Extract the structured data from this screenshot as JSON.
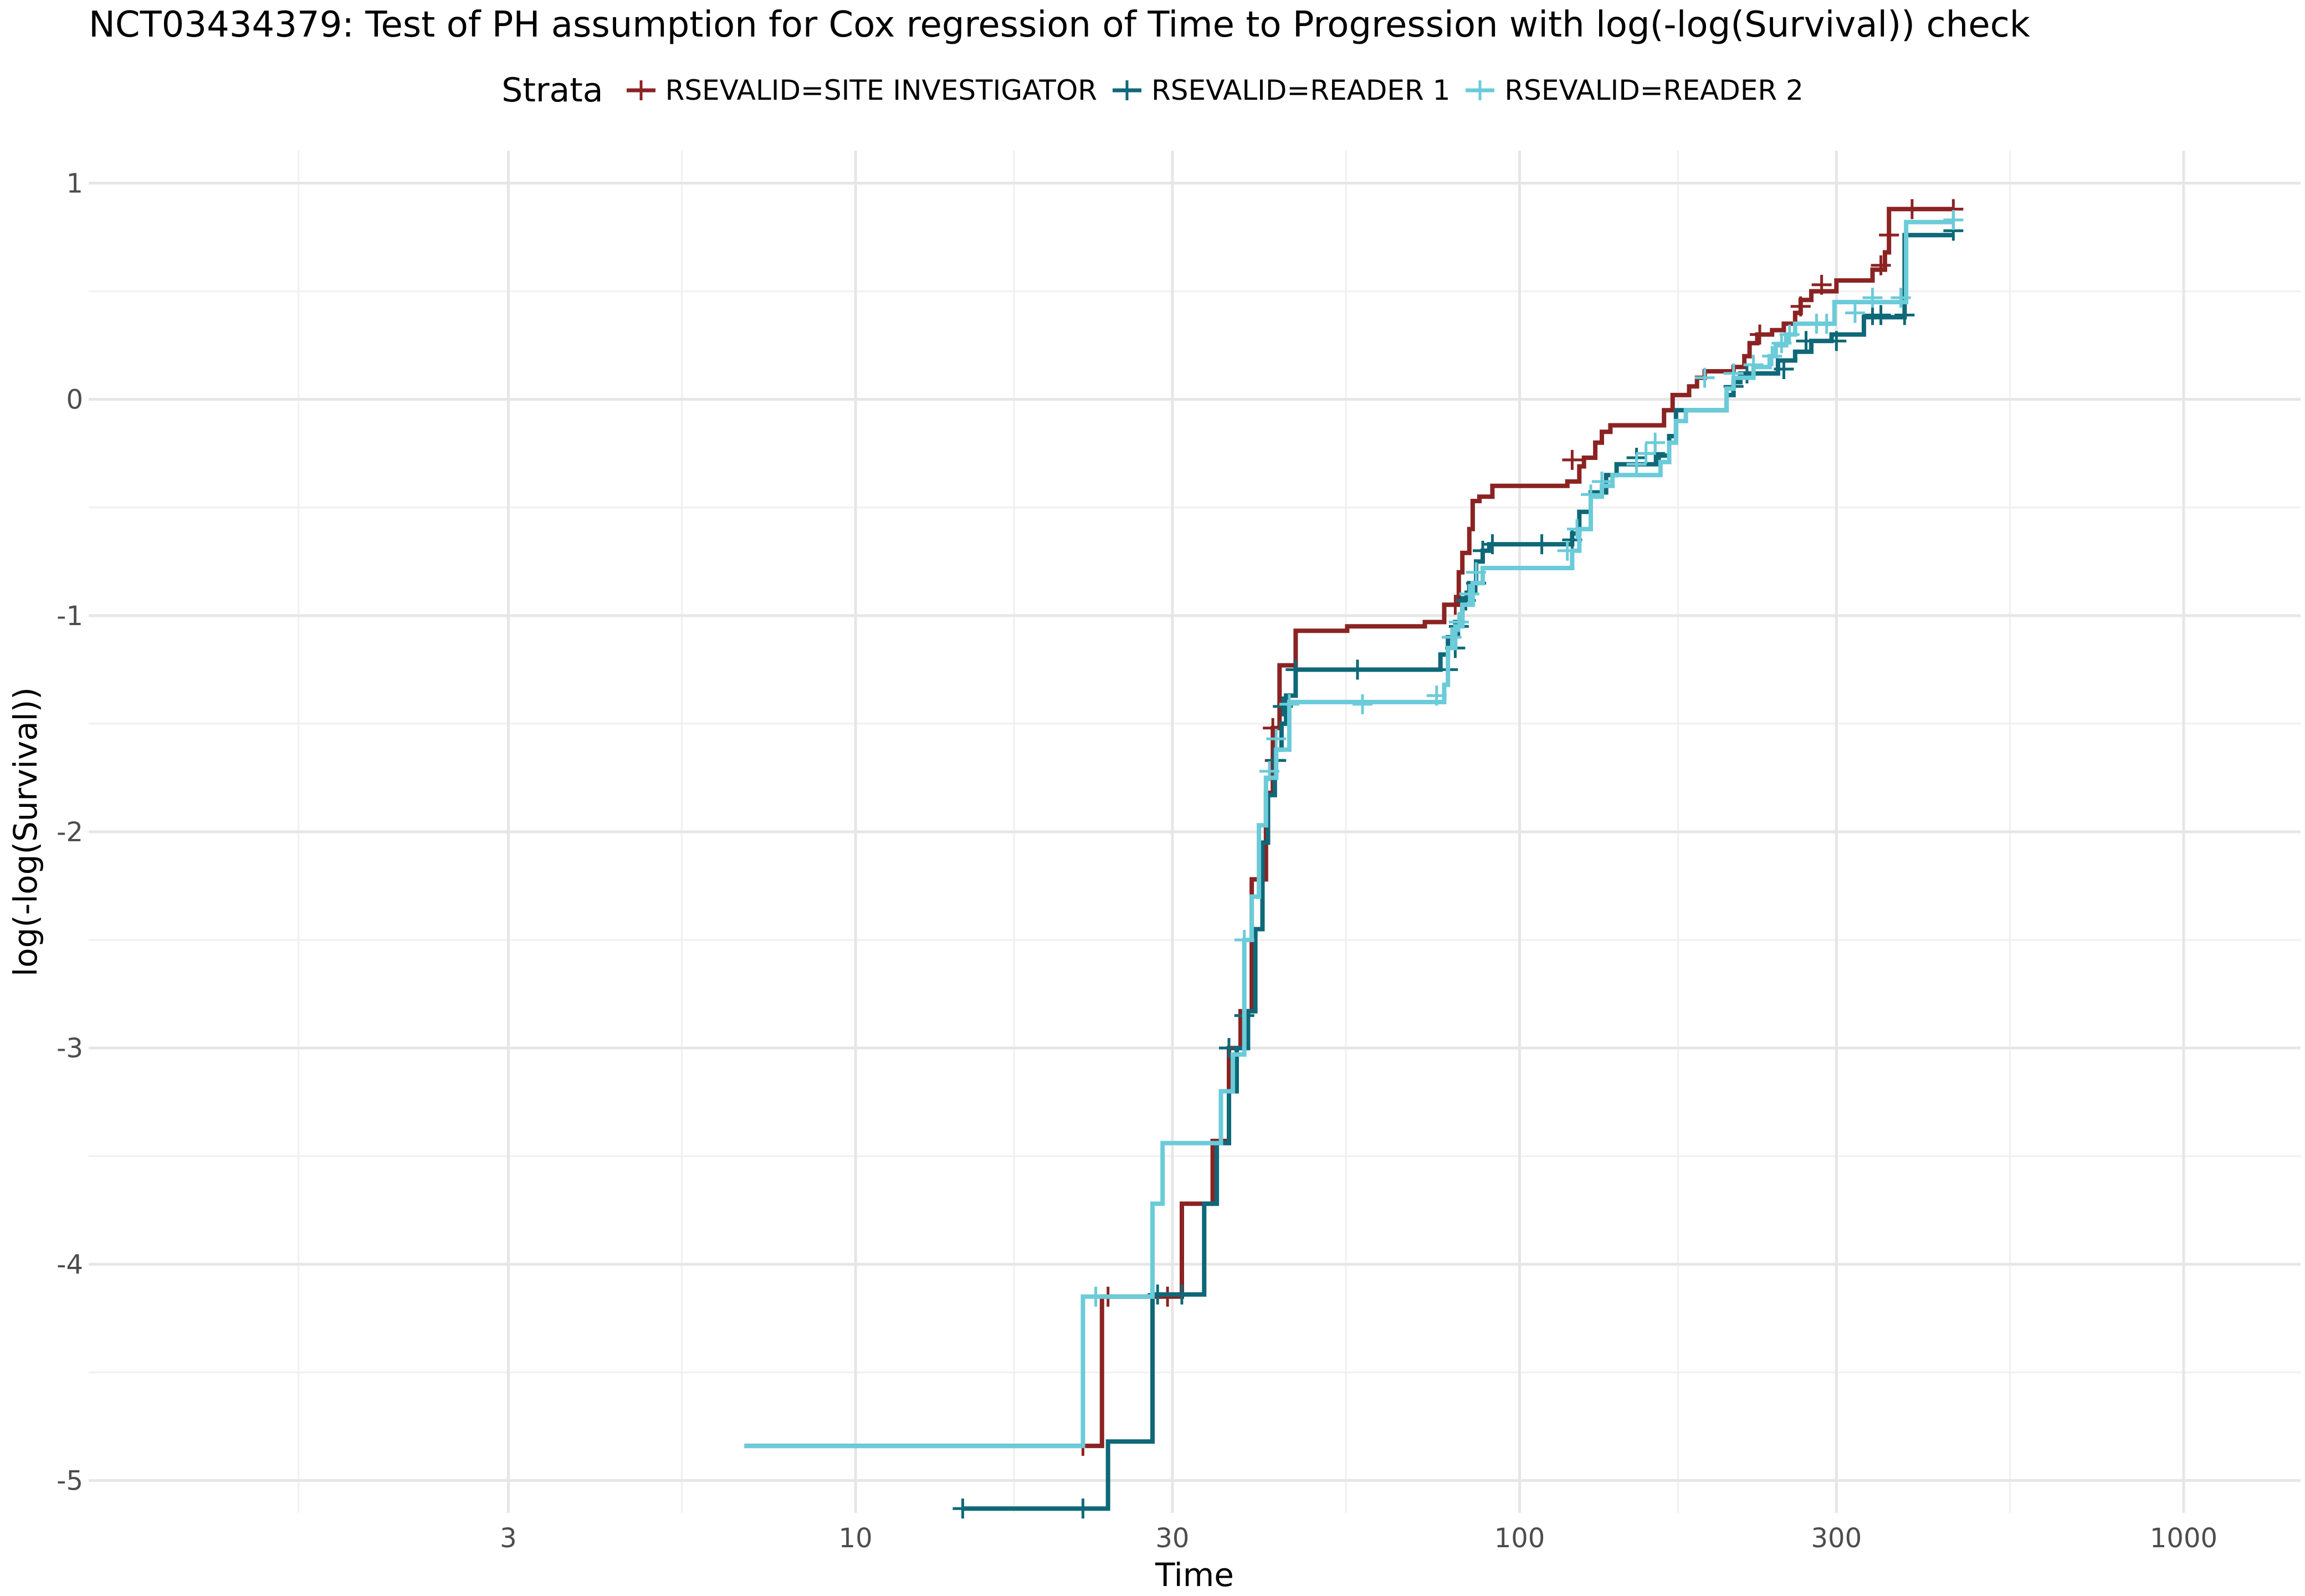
{
  "chart_data": {
    "type": "line",
    "title": "NCT03434379: Test of PH assumption for Cox regression of Time to Progression with log(-log(Survival)) check",
    "xlabel": "Time",
    "ylabel": "log(-log(Survival))",
    "x_scale": "log10",
    "xlim": [
      0.7,
      1500
    ],
    "ylim": [
      -5.15,
      1.15
    ],
    "x_ticks": [
      3,
      10,
      30,
      100,
      300,
      1000
    ],
    "x_tick_labels": [
      "3",
      "10",
      "30",
      "100",
      "300",
      "1000"
    ],
    "y_ticks": [
      1,
      0,
      -1,
      -2,
      -3,
      -4,
      -5
    ],
    "y_tick_labels": [
      "1",
      "0",
      "-1",
      "-2",
      "-3",
      "-4",
      "-5"
    ],
    "grid": true,
    "legend": {
      "title": "Strata",
      "position": "top"
    },
    "series": [
      {
        "name": "RSEVALID=SITE INVESTIGATOR",
        "color": "#8B2323",
        "steps": [
          [
            6.8,
            -4.84
          ],
          [
            23.5,
            -4.15
          ],
          [
            31,
            -3.72
          ],
          [
            34.5,
            -3.43
          ],
          [
            36.5,
            -3.0
          ],
          [
            38,
            -2.83
          ],
          [
            39.5,
            -2.22
          ],
          [
            41.5,
            -1.82
          ],
          [
            42.5,
            -1.52
          ],
          [
            43.5,
            -1.23
          ],
          [
            46,
            -1.07
          ],
          [
            55,
            -1.05
          ],
          [
            60,
            -1.05
          ],
          [
            72,
            -1.03
          ],
          [
            77,
            -0.95
          ],
          [
            81,
            -0.8
          ],
          [
            82,
            -0.71
          ],
          [
            84,
            -0.6
          ],
          [
            85,
            -0.47
          ],
          [
            87,
            -0.45
          ],
          [
            91,
            -0.4
          ],
          [
            108,
            -0.4
          ],
          [
            118,
            -0.38
          ],
          [
            123,
            -0.31
          ],
          [
            125,
            -0.27
          ],
          [
            130,
            -0.2
          ],
          [
            133,
            -0.15
          ],
          [
            137,
            -0.12
          ],
          [
            155,
            -0.12
          ],
          [
            165,
            -0.05
          ],
          [
            170,
            0.02
          ],
          [
            180,
            0.06
          ],
          [
            185,
            0.1
          ],
          [
            190,
            0.13
          ],
          [
            210,
            0.15
          ],
          [
            218,
            0.2
          ],
          [
            222,
            0.26
          ],
          [
            228,
            0.3
          ],
          [
            240,
            0.32
          ],
          [
            250,
            0.35
          ],
          [
            260,
            0.4
          ],
          [
            265,
            0.46
          ],
          [
            275,
            0.5
          ],
          [
            300,
            0.55
          ],
          [
            340,
            0.6
          ],
          [
            355,
            0.68
          ],
          [
            360,
            0.88
          ],
          [
            450,
            0.88
          ]
        ],
        "censor": [
          [
            22,
            -4.84
          ],
          [
            24,
            -4.15
          ],
          [
            29.5,
            -4.15
          ],
          [
            42.5,
            -1.52
          ],
          [
            42.8,
            -1.67
          ],
          [
            80,
            -0.95
          ],
          [
            120,
            -0.28
          ],
          [
            230,
            0.3
          ],
          [
            260,
            0.35
          ],
          [
            265,
            0.43
          ],
          [
            285,
            0.53
          ],
          [
            350,
            0.62
          ],
          [
            360,
            0.76
          ],
          [
            390,
            0.88
          ],
          [
            450,
            0.88
          ]
        ]
      },
      {
        "name": "RSEVALID=READER 1",
        "color": "#0E6878",
        "steps": [
          [
            14.5,
            -5.13
          ],
          [
            24,
            -4.82
          ],
          [
            28,
            -4.14
          ],
          [
            33.5,
            -3.72
          ],
          [
            35,
            -3.44
          ],
          [
            36.5,
            -3.2
          ],
          [
            37.5,
            -3.0
          ],
          [
            39,
            -2.83
          ],
          [
            40,
            -2.45
          ],
          [
            41,
            -2.05
          ],
          [
            41.8,
            -1.83
          ],
          [
            42.8,
            -1.62
          ],
          [
            43.8,
            -1.5
          ],
          [
            44.5,
            -1.37
          ],
          [
            46,
            -1.25
          ],
          [
            76,
            -1.18
          ],
          [
            78,
            -1.1
          ],
          [
            80,
            -1.03
          ],
          [
            82,
            -0.92
          ],
          [
            84,
            -0.85
          ],
          [
            86,
            -0.75
          ],
          [
            88,
            -0.7
          ],
          [
            90,
            -0.67
          ],
          [
            120,
            -0.62
          ],
          [
            123,
            -0.52
          ],
          [
            128,
            -0.43
          ],
          [
            135,
            -0.35
          ],
          [
            140,
            -0.3
          ],
          [
            162,
            -0.26
          ],
          [
            168,
            -0.17
          ],
          [
            172,
            -0.05
          ],
          [
            205,
            0.02
          ],
          [
            210,
            0.08
          ],
          [
            215,
            0.12
          ],
          [
            245,
            0.18
          ],
          [
            260,
            0.22
          ],
          [
            275,
            0.27
          ],
          [
            295,
            0.3
          ],
          [
            330,
            0.38
          ],
          [
            370,
            0.38
          ],
          [
            380,
            0.76
          ],
          [
            450,
            0.76
          ]
        ],
        "censor": [
          [
            14.5,
            -5.13
          ],
          [
            22,
            -5.13
          ],
          [
            28.5,
            -4.14
          ],
          [
            31,
            -4.14
          ],
          [
            36.5,
            -3.0
          ],
          [
            38.5,
            -2.85
          ],
          [
            43,
            -1.67
          ],
          [
            44,
            -1.42
          ],
          [
            46,
            -1.25
          ],
          [
            57,
            -1.25
          ],
          [
            78,
            -1.25
          ],
          [
            80,
            -1.15
          ],
          [
            81,
            -1.05
          ],
          [
            83,
            -0.93
          ],
          [
            86,
            -0.85
          ],
          [
            88,
            -0.7
          ],
          [
            91,
            -0.67
          ],
          [
            108,
            -0.67
          ],
          [
            120,
            -0.65
          ],
          [
            150,
            -0.27
          ],
          [
            160,
            -0.25
          ],
          [
            210,
            0.06
          ],
          [
            220,
            0.12
          ],
          [
            250,
            0.14
          ],
          [
            270,
            0.27
          ],
          [
            300,
            0.27
          ],
          [
            340,
            0.39
          ],
          [
            350,
            0.39
          ],
          [
            380,
            0.39
          ],
          [
            450,
            0.78
          ]
        ]
      },
      {
        "name": "RSEVALID=READER 2",
        "color": "#6BCBD9",
        "steps": [
          [
            6.8,
            -4.84
          ],
          [
            22,
            -4.15
          ],
          [
            28,
            -3.72
          ],
          [
            29,
            -3.44
          ],
          [
            35.5,
            -3.2
          ],
          [
            37,
            -3.03
          ],
          [
            38.5,
            -2.5
          ],
          [
            39.5,
            -2.3
          ],
          [
            40.5,
            -1.97
          ],
          [
            41.5,
            -1.75
          ],
          [
            43,
            -1.62
          ],
          [
            45,
            -1.4
          ],
          [
            77,
            -1.32
          ],
          [
            78,
            -1.15
          ],
          [
            80,
            -1.05
          ],
          [
            82,
            -0.95
          ],
          [
            85,
            -0.85
          ],
          [
            88,
            -0.78
          ],
          [
            120,
            -0.7
          ],
          [
            123,
            -0.6
          ],
          [
            128,
            -0.45
          ],
          [
            133,
            -0.4
          ],
          [
            138,
            -0.35
          ],
          [
            163,
            -0.29
          ],
          [
            168,
            -0.2
          ],
          [
            172,
            -0.1
          ],
          [
            178,
            -0.05
          ],
          [
            205,
            0.05
          ],
          [
            210,
            0.1
          ],
          [
            225,
            0.15
          ],
          [
            238,
            0.2
          ],
          [
            243,
            0.25
          ],
          [
            252,
            0.3
          ],
          [
            260,
            0.35
          ],
          [
            298,
            0.45
          ],
          [
            380,
            0.45
          ],
          [
            382,
            0.82
          ],
          [
            450,
            0.82
          ]
        ],
        "censor": [
          [
            23,
            -4.15
          ],
          [
            38.5,
            -2.5
          ],
          [
            42,
            -1.72
          ],
          [
            43,
            -1.57
          ],
          [
            45,
            -1.41
          ],
          [
            58,
            -1.41
          ],
          [
            75,
            -1.37
          ],
          [
            79,
            -1.1
          ],
          [
            81,
            -1.03
          ],
          [
            84,
            -0.9
          ],
          [
            86,
            -0.8
          ],
          [
            118,
            -0.7
          ],
          [
            122,
            -0.6
          ],
          [
            128,
            -0.44
          ],
          [
            133,
            -0.38
          ],
          [
            150,
            -0.3
          ],
          [
            155,
            -0.25
          ],
          [
            160,
            -0.2
          ],
          [
            190,
            0.1
          ],
          [
            210,
            0.12
          ],
          [
            225,
            0.16
          ],
          [
            240,
            0.2
          ],
          [
            248,
            0.26
          ],
          [
            255,
            0.3
          ],
          [
            280,
            0.35
          ],
          [
            290,
            0.35
          ],
          [
            320,
            0.4
          ],
          [
            340,
            0.47
          ],
          [
            375,
            0.47
          ],
          [
            450,
            0.83
          ]
        ]
      }
    ]
  }
}
